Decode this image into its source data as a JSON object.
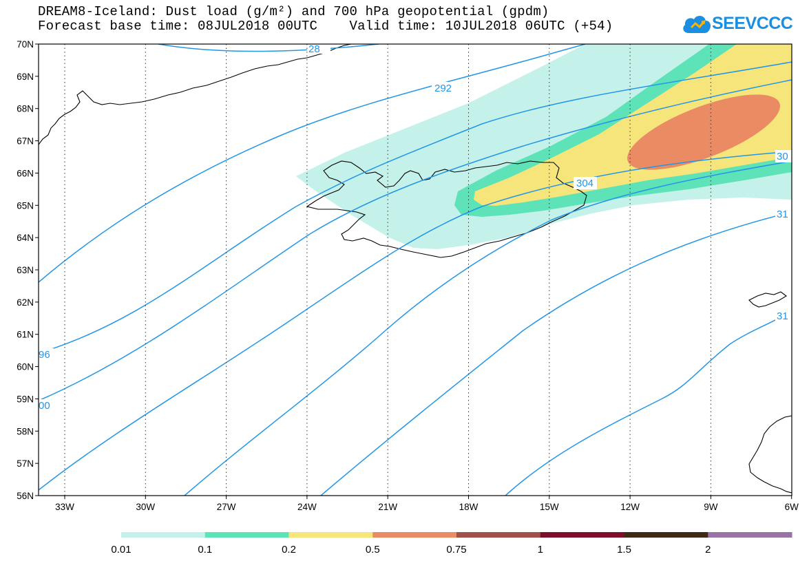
{
  "header": {
    "line1": "DREAM8-Iceland: Dust load (g/m²) and 700 hPa geopotential (gpdm)",
    "line2": "Forecast base time: 08JUL2018 00UTC    Valid time: 10JUL2018 06UTC (+54)",
    "logo_text": "SEEVCCC"
  },
  "map": {
    "lat_labels": [
      "70N",
      "69N",
      "68N",
      "67N",
      "66N",
      "65N",
      "64N",
      "63N",
      "62N",
      "61N",
      "60N",
      "59N",
      "58N",
      "57N",
      "56N"
    ],
    "lon_labels": [
      "33W",
      "30W",
      "27W",
      "24W",
      "21W",
      "18W",
      "15W",
      "12W",
      "9W",
      "6W"
    ],
    "contour_labels": [
      "292",
      "304",
      "30",
      "31",
      "31",
      "96",
      "00",
      "28"
    ],
    "contour_color": "#2196e8"
  },
  "legend": {
    "colors": [
      "#c4f2ea",
      "#5ee2b8",
      "#f6e57a",
      "#ea8b63",
      "#a0524a",
      "#7d0f2a",
      "#3f2a16",
      "#9a73a6"
    ],
    "labels": [
      "0.01",
      "0.1",
      "0.2",
      "0.5",
      "0.75",
      "1",
      "1.5",
      "2"
    ]
  }
}
